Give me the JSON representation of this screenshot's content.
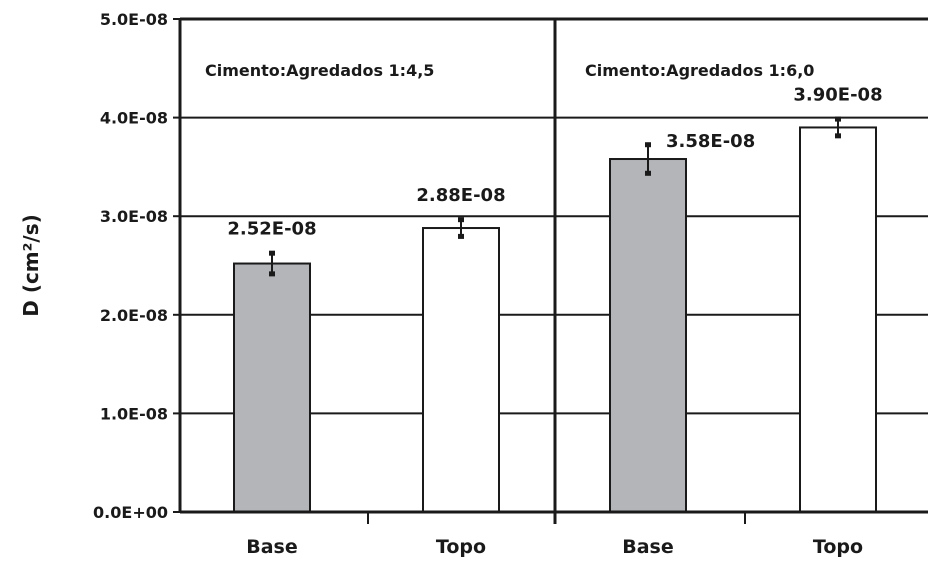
{
  "chart_data": {
    "type": "bar",
    "ylabel": "D (cm²/s)",
    "ylim": [
      0,
      5e-08
    ],
    "y_ticks": [
      {
        "value": 0,
        "label": "0.0E+00"
      },
      {
        "value": 1e-08,
        "label": "1.0E-08"
      },
      {
        "value": 2e-08,
        "label": "2.0E-08"
      },
      {
        "value": 3e-08,
        "label": "3.0E-08"
      },
      {
        "value": 4e-08,
        "label": "4.0E-08"
      },
      {
        "value": 5e-08,
        "label": "5.0E-08"
      }
    ],
    "grid": true,
    "colors": {
      "gray": "#b3b5b8",
      "white": "#ffffff",
      "line": "#1a1a1a"
    },
    "groups": [
      {
        "title": "Cimento:Agredados  1:4,5",
        "bars": [
          {
            "category": "Base",
            "value": 2.52e-08,
            "label": "2.52E-08",
            "error": 1.1e-09,
            "fill": "gray"
          },
          {
            "category": "Topo",
            "value": 2.88e-08,
            "label": "2.88E-08",
            "error": 9e-10,
            "fill": "white"
          }
        ]
      },
      {
        "title": "Cimento:Agredados  1:6,0",
        "bars": [
          {
            "category": "Base",
            "value": 3.58e-08,
            "label": "3.58E-08",
            "error": 1.5e-09,
            "fill": "gray"
          },
          {
            "category": "Topo",
            "value": 3.9e-08,
            "label": "3.90E-08",
            "error": 9e-10,
            "fill": "white"
          }
        ]
      }
    ]
  }
}
